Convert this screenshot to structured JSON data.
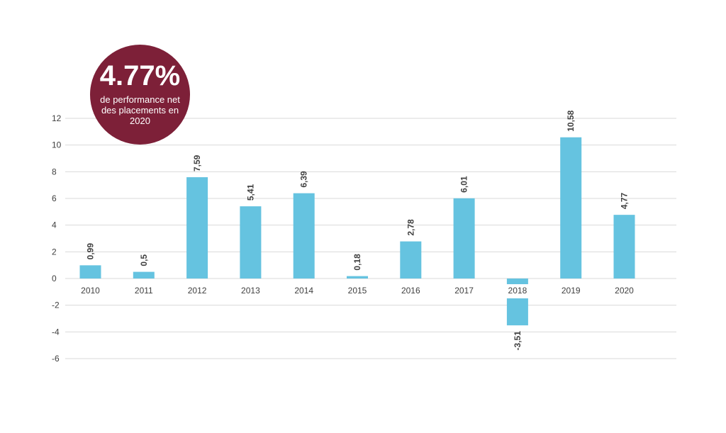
{
  "colors": {
    "bar": "#65c3e0",
    "badge": "#7d2038",
    "grid": "#d9d9d9",
    "axis_text": "#3f3f3f",
    "label_text": "#404040"
  },
  "badge": {
    "value": "4.77%",
    "caption": "de performance net des placements en 2020"
  },
  "chart_data": {
    "type": "bar",
    "title": "",
    "xlabel": "",
    "ylabel": "",
    "categories": [
      "2010",
      "2011",
      "2012",
      "2013",
      "2014",
      "2015",
      "2016",
      "2017",
      "2018",
      "2019",
      "2020"
    ],
    "values": [
      0.99,
      0.5,
      7.59,
      5.41,
      6.39,
      0.18,
      2.78,
      6.01,
      -3.51,
      10.58,
      4.77
    ],
    "value_labels": [
      "0,99",
      "0,5",
      "7,59",
      "5,41",
      "6,39",
      "0,18",
      "2,78",
      "6,01",
      "-3,51",
      "10,58",
      "4,77"
    ],
    "yticks": [
      "12",
      "10",
      "8",
      "6",
      "4",
      "2",
      "0",
      "-2",
      "-4",
      "-6"
    ],
    "ylim": [
      -6,
      12
    ],
    "grid": true,
    "legend": "none"
  }
}
